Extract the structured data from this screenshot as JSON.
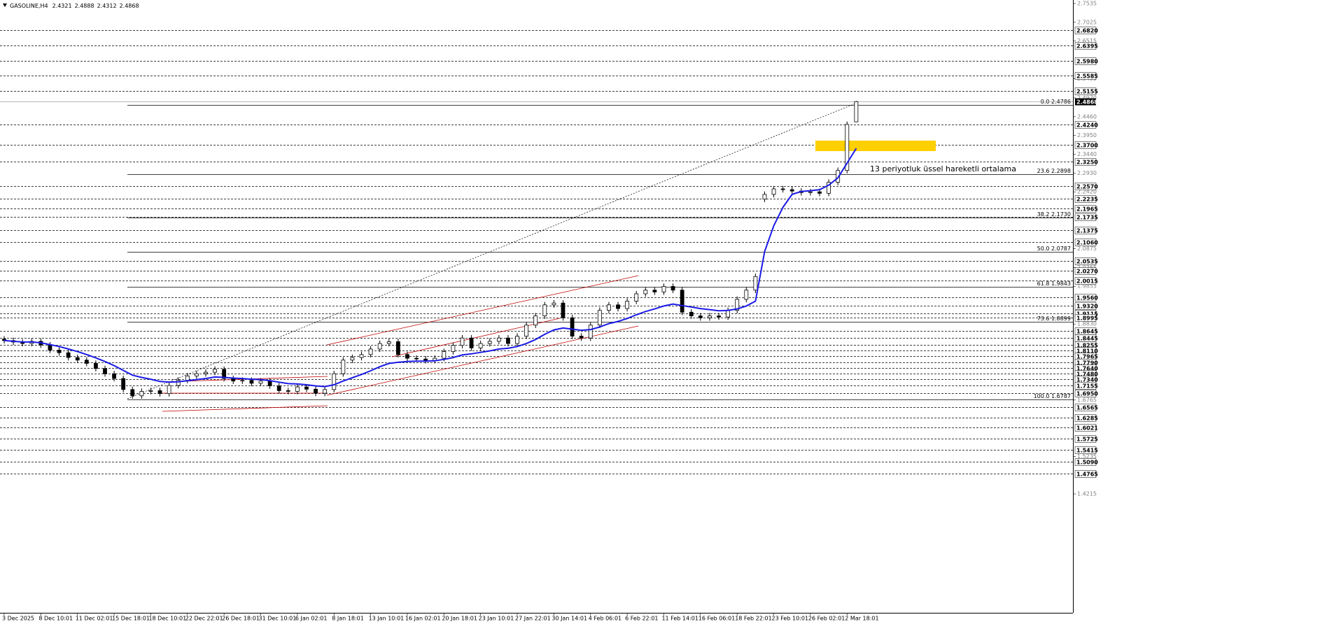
{
  "header": {
    "symbol": "GASOLINE,H4",
    "open": 2.4321,
    "high": 2.4888,
    "low": 2.4312,
    "close": 2.4868
  },
  "chart_data": {
    "type": "candlestick",
    "categories": [
      "3 Dec 2025",
      null,
      null,
      null,
      "8 Dec 10:01",
      null,
      null,
      null,
      "11 Dec 02:01",
      null,
      null,
      null,
      "15 Dec 18:01",
      null,
      null,
      null,
      "18 Dec 10:01",
      null,
      null,
      null,
      "22 Dec 22:01",
      null,
      null,
      null,
      "26 Dec 18:01",
      null,
      null,
      null,
      "31 Dec 10:01",
      null,
      null,
      null,
      "6 Jan 02:01",
      null,
      null,
      null,
      "8 Jan 18:01",
      null,
      null,
      null,
      "13 Jan 10:01",
      null,
      null,
      null,
      "16 Jan 02:01",
      null,
      null,
      null,
      "20 Jan 18:01",
      null,
      null,
      null,
      "23 Jan 10:01",
      null,
      null,
      null,
      "27 Jan 22:01",
      null,
      null,
      null,
      "30 Jan 14:01",
      null,
      null,
      null,
      "4 Feb 06:01",
      null,
      null,
      null,
      "6 Feb 22:01",
      null,
      null,
      null,
      "11 Feb 14:01",
      null,
      null,
      null,
      "16 Feb 06:01",
      null,
      null,
      null,
      "18 Feb 22:01",
      null,
      null,
      null,
      "23 Feb 10:01",
      null,
      null,
      null,
      "26 Feb 02:01",
      null,
      null,
      null,
      "2 Mar 18:01",
      null
    ],
    "open": [
      1.842,
      1.838,
      1.834,
      1.83,
      1.836,
      1.826,
      1.812,
      1.805,
      1.792,
      1.785,
      1.776,
      1.762,
      1.748,
      1.735,
      1.705,
      1.688,
      1.7,
      1.702,
      1.694,
      1.716,
      1.73,
      1.742,
      1.748,
      1.752,
      1.76,
      1.735,
      1.728,
      1.73,
      1.722,
      1.728,
      1.715,
      1.702,
      1.7,
      1.712,
      1.706,
      1.695,
      1.705,
      1.748,
      1.785,
      1.792,
      1.8,
      1.815,
      1.83,
      1.835,
      1.8,
      1.79,
      1.788,
      1.784,
      1.79,
      1.808,
      1.825,
      1.845,
      1.818,
      1.83,
      1.836,
      1.845,
      1.83,
      1.85,
      1.88,
      1.905,
      1.935,
      1.94,
      1.9,
      1.85,
      1.845,
      1.88,
      1.92,
      1.935,
      1.925,
      1.945,
      1.965,
      1.975,
      1.97,
      1.985,
      1.975,
      1.915,
      1.905,
      1.9,
      1.905,
      1.902,
      1.92,
      1.95,
      1.975,
      2.222,
      2.235,
      2.25,
      2.248,
      2.244,
      2.24,
      2.242,
      2.238,
      2.268,
      2.3,
      2.4321
    ],
    "high": [
      1.85,
      1.846,
      1.842,
      1.844,
      1.844,
      1.834,
      1.82,
      1.813,
      1.8,
      1.793,
      1.784,
      1.77,
      1.756,
      1.743,
      1.713,
      1.708,
      1.71,
      1.71,
      1.724,
      1.738,
      1.75,
      1.756,
      1.76,
      1.768,
      1.768,
      1.743,
      1.738,
      1.738,
      1.736,
      1.736,
      1.723,
      1.71,
      1.72,
      1.72,
      1.714,
      1.713,
      1.756,
      1.793,
      1.8,
      1.808,
      1.823,
      1.838,
      1.843,
      1.843,
      1.808,
      1.798,
      1.796,
      1.798,
      1.816,
      1.833,
      1.853,
      1.853,
      1.838,
      1.844,
      1.853,
      1.853,
      1.858,
      1.888,
      1.913,
      1.943,
      1.948,
      1.948,
      1.908,
      1.858,
      1.888,
      1.928,
      1.943,
      1.943,
      1.953,
      1.973,
      1.983,
      1.983,
      1.993,
      1.993,
      1.983,
      1.923,
      1.913,
      1.913,
      1.913,
      1.928,
      1.958,
      1.983,
      2.02,
      2.243,
      2.258,
      2.258,
      2.256,
      2.252,
      2.25,
      2.25,
      2.276,
      2.308,
      2.433,
      2.4888
    ],
    "low": [
      1.83,
      1.826,
      1.822,
      1.822,
      1.818,
      1.804,
      1.797,
      1.784,
      1.777,
      1.768,
      1.754,
      1.74,
      1.727,
      1.697,
      1.68,
      1.68,
      1.692,
      1.686,
      1.686,
      1.708,
      1.722,
      1.734,
      1.74,
      1.744,
      1.727,
      1.72,
      1.72,
      1.714,
      1.714,
      1.707,
      1.694,
      1.692,
      1.692,
      1.698,
      1.687,
      1.687,
      1.697,
      1.74,
      1.777,
      1.784,
      1.792,
      1.807,
      1.822,
      1.792,
      1.782,
      1.78,
      1.776,
      1.776,
      1.782,
      1.8,
      1.817,
      1.81,
      1.81,
      1.822,
      1.828,
      1.822,
      1.822,
      1.842,
      1.872,
      1.897,
      1.927,
      1.892,
      1.842,
      1.837,
      1.837,
      1.872,
      1.912,
      1.917,
      1.917,
      1.937,
      1.957,
      1.962,
      1.962,
      1.967,
      1.907,
      1.897,
      1.892,
      1.892,
      1.894,
      1.894,
      1.912,
      1.942,
      1.967,
      2.214,
      2.227,
      2.24,
      2.236,
      2.232,
      2.232,
      2.23,
      2.23,
      2.26,
      2.292,
      2.4312
    ],
    "close": [
      1.838,
      1.834,
      1.83,
      1.836,
      1.826,
      1.812,
      1.805,
      1.792,
      1.785,
      1.776,
      1.762,
      1.748,
      1.735,
      1.705,
      1.688,
      1.7,
      1.702,
      1.694,
      1.716,
      1.73,
      1.742,
      1.748,
      1.752,
      1.76,
      1.735,
      1.728,
      1.73,
      1.722,
      1.728,
      1.715,
      1.702,
      1.7,
      1.712,
      1.706,
      1.695,
      1.705,
      1.748,
      1.785,
      1.792,
      1.8,
      1.815,
      1.83,
      1.835,
      1.8,
      1.79,
      1.788,
      1.784,
      1.79,
      1.808,
      1.825,
      1.845,
      1.818,
      1.83,
      1.836,
      1.845,
      1.83,
      1.85,
      1.88,
      1.905,
      1.935,
      1.94,
      1.9,
      1.85,
      1.845,
      1.88,
      1.92,
      1.935,
      1.925,
      1.945,
      1.965,
      1.975,
      1.97,
      1.985,
      1.975,
      1.915,
      1.905,
      1.9,
      1.905,
      1.902,
      1.92,
      1.95,
      1.975,
      2.012,
      2.235,
      2.25,
      2.248,
      2.244,
      2.24,
      2.242,
      2.238,
      2.268,
      2.3,
      2.425,
      2.4868
    ],
    "up_color": "#ffffff",
    "down_color": "#000000",
    "wick_color": "#000000",
    "ema": {
      "name": "13 periyotluk üssel hareketli ortalama",
      "color": "#1a1ae6",
      "values": [
        1.838,
        1.836,
        1.834,
        1.834,
        1.832,
        1.827,
        1.822,
        1.815,
        1.808,
        1.8,
        1.791,
        1.781,
        1.77,
        1.757,
        1.744,
        1.738,
        1.733,
        1.727,
        1.725,
        1.726,
        1.729,
        1.732,
        1.735,
        1.739,
        1.738,
        1.736,
        1.735,
        1.733,
        1.732,
        1.729,
        1.725,
        1.721,
        1.72,
        1.718,
        1.715,
        1.713,
        1.718,
        1.728,
        1.737,
        1.746,
        1.756,
        1.767,
        1.776,
        1.779,
        1.781,
        1.782,
        1.782,
        1.783,
        1.787,
        1.792,
        1.799,
        1.802,
        1.806,
        1.81,
        1.815,
        1.817,
        1.822,
        1.83,
        1.841,
        1.855,
        1.867,
        1.872,
        1.869,
        1.866,
        1.868,
        1.875,
        1.884,
        1.89,
        1.898,
        1.908,
        1.917,
        1.924,
        1.932,
        1.937,
        1.933,
        1.929,
        1.925,
        1.922,
        1.919,
        1.92,
        1.924,
        1.932,
        1.945,
        2.08,
        2.15,
        2.2,
        2.235,
        2.243,
        2.245,
        2.248,
        2.26,
        2.28,
        2.32,
        2.36
      ]
    },
    "ylim": [
      1.1138,
      2.763
    ],
    "yticks": [
      2.7535,
      2.7025,
      2.6515,
      2.5495,
      {
        "value": 2.497,
        "label": "2.4970"
      },
      {
        "value": 2.446,
        "label": "2.4460"
      },
      {
        "value": 2.395,
        "label": "2.3950"
      },
      {
        "value": 2.344,
        "label": "2.3440"
      },
      {
        "value": 2.293,
        "label": "2.2930"
      },
      {
        "value": 2.242,
        "label": "2.2420"
      },
      2.0875,
      2.0365,
      1.9855,
      {
        "value": 1.883,
        "label": "1.8830"
      },
      1.6765,
      1.5235,
      1.4215
    ],
    "levels": [
      {
        "value": 2.682,
        "label": "2.6820"
      },
      2.6395,
      {
        "value": 2.598,
        "label": "2.5980"
      },
      2.5585,
      2.5155,
      {
        "value": 2.424,
        "label": "2.4240"
      },
      {
        "value": 2.37,
        "label": "2.3700"
      },
      {
        "value": 2.325,
        "label": "2.3250"
      },
      {
        "value": 2.257,
        "label": "2.2570"
      },
      2.2235,
      2.1965,
      2.1735,
      2.1375,
      {
        "value": 2.106,
        "label": "2.1060"
      },
      2.0535,
      {
        "value": 2.027,
        "label": "2.0270"
      },
      2.0015,
      {
        "value": 1.956,
        "label": "1.9560"
      },
      {
        "value": 1.932,
        "label": "1.9320"
      },
      1.9115,
      1.8995,
      1.8645,
      1.8445,
      1.8255,
      {
        "value": 1.811,
        "label": "1.8110"
      },
      1.7965,
      {
        "value": 1.779,
        "label": "1.7790"
      },
      {
        "value": 1.764,
        "label": "1.7640"
      },
      {
        "value": 1.748,
        "label": "1.7480"
      },
      {
        "value": 1.734,
        "label": "1.7340"
      },
      1.7155,
      {
        "value": 1.695,
        "label": "1.6950"
      },
      1.6565,
      1.6285,
      1.6021,
      1.5725,
      1.5415,
      {
        "value": 1.509,
        "label": "1.5090"
      },
      1.4765
    ],
    "fibonacci": [
      {
        "value": 2.4786,
        "label": "0.0 2.4786"
      },
      {
        "value": 2.2898,
        "label": "23.6 2.2898"
      },
      {
        "value": 2.173,
        "label": "38.2 2.1730"
      },
      {
        "value": 2.0787,
        "label": "50.0 2.0787"
      },
      {
        "value": 1.9843,
        "label": "61.8 1.9843"
      },
      {
        "value": 1.8899,
        "label": "73.6 1.8899"
      },
      {
        "value": 1.6787,
        "label": "100.0 1.6787"
      }
    ]
  }
}
